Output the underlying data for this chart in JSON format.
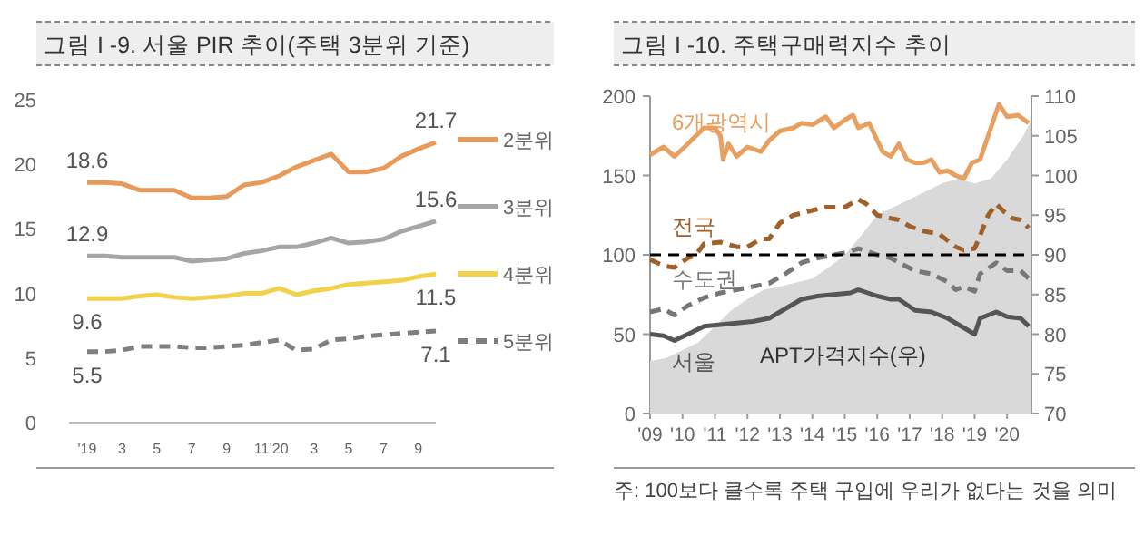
{
  "chart_data": [
    {
      "type": "line",
      "title": "그림 I -9. 서울 PIR 추이(주택 3분위 기준)",
      "categories": [
        "'19",
        null,
        "3",
        null,
        "5",
        null,
        "7",
        null,
        "9",
        null,
        "11",
        "'20",
        null,
        "3",
        null,
        "5",
        null,
        "7",
        null,
        "9",
        null
      ],
      "ylim": [
        0,
        25
      ],
      "yticks": [
        0,
        5,
        10,
        15,
        20,
        25
      ],
      "legend": "right",
      "series": [
        {
          "name": "2분위",
          "color": "#e89a5a",
          "line_style": "solid",
          "values": [
            18.6,
            18.6,
            18.5,
            18.0,
            18.0,
            18.0,
            17.4,
            17.4,
            17.5,
            18.4,
            18.6,
            19.1,
            19.8,
            20.3,
            20.8,
            19.4,
            19.4,
            19.7,
            20.6,
            21.2,
            21.7
          ],
          "value_labels": [
            "18.6",
            null,
            null,
            null,
            null,
            null,
            null,
            null,
            null,
            null,
            null,
            null,
            null,
            null,
            null,
            null,
            null,
            null,
            null,
            null,
            "21.7"
          ]
        },
        {
          "name": "3분위",
          "color": "#a6a6a6",
          "line_style": "solid",
          "values": [
            12.9,
            12.9,
            12.8,
            12.8,
            12.8,
            12.8,
            12.5,
            12.6,
            12.7,
            13.1,
            13.3,
            13.6,
            13.6,
            13.9,
            14.3,
            13.9,
            14.0,
            14.2,
            14.8,
            15.2,
            15.6
          ],
          "value_labels": [
            "12.9",
            null,
            null,
            null,
            null,
            null,
            null,
            null,
            null,
            null,
            null,
            null,
            null,
            null,
            null,
            null,
            null,
            null,
            null,
            null,
            "15.6"
          ]
        },
        {
          "name": "4분위",
          "color": "#f2d14b",
          "line_style": "solid",
          "values": [
            9.6,
            9.6,
            9.6,
            9.8,
            9.9,
            9.7,
            9.6,
            9.7,
            9.8,
            10.0,
            10.0,
            10.4,
            9.9,
            10.2,
            10.4,
            10.7,
            10.8,
            10.9,
            11.0,
            11.3,
            11.5
          ],
          "value_labels": [
            "9.6",
            null,
            null,
            null,
            null,
            null,
            null,
            null,
            null,
            null,
            null,
            null,
            null,
            null,
            null,
            null,
            null,
            null,
            null,
            null,
            "11.5"
          ]
        },
        {
          "name": "5분위",
          "color": "#7f7f7f",
          "line_style": "dashed",
          "values": [
            5.5,
            5.5,
            5.6,
            5.9,
            5.9,
            5.9,
            5.8,
            5.8,
            5.9,
            6.0,
            6.2,
            6.4,
            5.6,
            5.7,
            6.4,
            6.5,
            6.7,
            6.8,
            6.9,
            7.0,
            7.1
          ],
          "value_labels": [
            "5.5",
            null,
            null,
            null,
            null,
            null,
            null,
            null,
            null,
            null,
            null,
            null,
            null,
            null,
            null,
            null,
            null,
            null,
            null,
            null,
            "7.1"
          ]
        }
      ]
    },
    {
      "type": "line",
      "title": "그림 I -10. 주택구매력지수 추이",
      "xlim": [
        "2009-01",
        "2020-10"
      ],
      "xticks": [
        {
          "value": "2009-01",
          "label": "'09"
        },
        {
          "value": "2010-01",
          "label": "'10"
        },
        {
          "value": "2011-01",
          "label": "'11"
        },
        {
          "value": "2012-01",
          "label": "'12"
        },
        {
          "value": "2013-01",
          "label": "'13"
        },
        {
          "value": "2014-01",
          "label": "'14"
        },
        {
          "value": "2015-01",
          "label": "'15"
        },
        {
          "value": "2016-01",
          "label": "'16"
        },
        {
          "value": "2017-01",
          "label": "'17"
        },
        {
          "value": "2018-01",
          "label": "'18"
        },
        {
          "value": "2019-01",
          "label": "'19"
        },
        {
          "value": "2020-01",
          "label": "'20"
        }
      ],
      "ylim": [
        0,
        200
      ],
      "yticks": [
        0,
        50,
        100,
        150,
        200
      ],
      "y2lim": [
        70,
        110
      ],
      "y2ticks": [
        70,
        75,
        80,
        85,
        90,
        95,
        100,
        105,
        110
      ],
      "ref_lines": [
        {
          "axis": "y",
          "value": 100,
          "color": "#000000",
          "line_style": "dashed"
        }
      ],
      "annotations": [
        "주: 100보다 클수록 주택 구입에 우리가 없다는 것을 의미"
      ],
      "series": [
        {
          "name": "APT가격지수(우)",
          "type": "area",
          "axis": "y2",
          "color": "#d9d9d9",
          "x": [
            "2009-01",
            "2009-07",
            "2010-01",
            "2010-07",
            "2011-01",
            "2011-07",
            "2012-01",
            "2012-07",
            "2013-01",
            "2014-01",
            "2014-07",
            "2015-01",
            "2015-07",
            "2016-01",
            "2016-07",
            "2017-01",
            "2017-07",
            "2018-01",
            "2018-07",
            "2019-01",
            "2019-07",
            "2020-01",
            "2020-07",
            "2020-10"
          ],
          "values": [
            76.6,
            77,
            78,
            79,
            81,
            83,
            84.4,
            85.6,
            86,
            87,
            88.4,
            90,
            92.4,
            95,
            96,
            97,
            98,
            99,
            99.6,
            99,
            99.6,
            102,
            105,
            107
          ]
        },
        {
          "name": "6개광역시",
          "color": "#e8a060",
          "line_style": "solid",
          "x": [
            "2009-01",
            "2009-06",
            "2009-10",
            "2010-03",
            "2010-09",
            "2011-01",
            "2011-03",
            "2011-04",
            "2011-06",
            "2011-09",
            "2012-01",
            "2012-06",
            "2012-09",
            "2013-01",
            "2013-06",
            "2013-09",
            "2014-01",
            "2014-06",
            "2014-09",
            "2015-01",
            "2015-04",
            "2015-06",
            "2015-10",
            "2016-01",
            "2016-03",
            "2016-06",
            "2016-09",
            "2016-12",
            "2017-03",
            "2017-06",
            "2017-09",
            "2017-12",
            "2018-03",
            "2018-06",
            "2018-09",
            "2018-12",
            "2019-03",
            "2019-06",
            "2019-10",
            "2020-01",
            "2020-05",
            "2020-09"
          ],
          "values": [
            163,
            168,
            162,
            170,
            180,
            180,
            175,
            160,
            170,
            162,
            168,
            165,
            172,
            178,
            180,
            183,
            182,
            187,
            180,
            185,
            188,
            180,
            183,
            172,
            165,
            162,
            170,
            160,
            158,
            158,
            160,
            152,
            153,
            150,
            148,
            158,
            160,
            175,
            195,
            187,
            188,
            183
          ]
        },
        {
          "name": "전국",
          "color": "#a0602a",
          "line_style": "dashed",
          "x": [
            "2009-01",
            "2009-06",
            "2009-10",
            "2010-03",
            "2010-06",
            "2010-09",
            "2011-03",
            "2011-09",
            "2012-01",
            "2012-06",
            "2012-09",
            "2013-01",
            "2013-06",
            "2014-01",
            "2014-06",
            "2015-01",
            "2015-06",
            "2015-09",
            "2016-01",
            "2016-06",
            "2016-09",
            "2017-01",
            "2017-06",
            "2017-12",
            "2018-06",
            "2018-09",
            "2019-01",
            "2019-03",
            "2019-06",
            "2019-09",
            "2019-12",
            "2020-03",
            "2020-06",
            "2020-09"
          ],
          "values": [
            97,
            93,
            92,
            98,
            100,
            107,
            108,
            105,
            105,
            110,
            110,
            120,
            125,
            128,
            130,
            130,
            135,
            132,
            125,
            123,
            122,
            118,
            115,
            113,
            105,
            103,
            104,
            112,
            125,
            132,
            127,
            123,
            122,
            117
          ]
        },
        {
          "name": "수도권",
          "color": "#777777",
          "line_style": "dashed",
          "x": [
            "2009-01",
            "2009-06",
            "2009-10",
            "2010-03",
            "2010-09",
            "2011-03",
            "2011-09",
            "2012-03",
            "2012-09",
            "2013-03",
            "2013-09",
            "2014-03",
            "2014-09",
            "2015-03",
            "2015-06",
            "2016-01",
            "2016-06",
            "2016-09",
            "2017-03",
            "2017-09",
            "2018-03",
            "2018-06",
            "2018-09",
            "2019-01",
            "2019-03",
            "2019-09",
            "2020-01",
            "2020-06",
            "2020-09"
          ],
          "values": [
            64,
            66,
            62,
            68,
            73,
            76,
            78,
            80,
            82,
            88,
            95,
            98,
            100,
            102,
            104,
            100,
            98,
            95,
            90,
            88,
            83,
            78,
            80,
            77,
            88,
            95,
            90,
            90,
            85
          ]
        },
        {
          "name": "서울",
          "color": "#555555",
          "line_style": "solid",
          "x": [
            "2009-01",
            "2009-06",
            "2009-10",
            "2010-03",
            "2010-09",
            "2011-03",
            "2011-09",
            "2012-03",
            "2012-09",
            "2013-03",
            "2013-09",
            "2014-03",
            "2014-09",
            "2015-03",
            "2015-06",
            "2016-01",
            "2016-06",
            "2016-09",
            "2017-03",
            "2017-09",
            "2018-03",
            "2018-09",
            "2019-01",
            "2019-03",
            "2019-09",
            "2020-01",
            "2020-06",
            "2020-09"
          ],
          "values": [
            50,
            49,
            46,
            50,
            55,
            56,
            57,
            58,
            60,
            66,
            72,
            74,
            75,
            76,
            78,
            74,
            72,
            72,
            65,
            64,
            60,
            54,
            50,
            60,
            64,
            61,
            60,
            55
          ]
        }
      ]
    }
  ]
}
